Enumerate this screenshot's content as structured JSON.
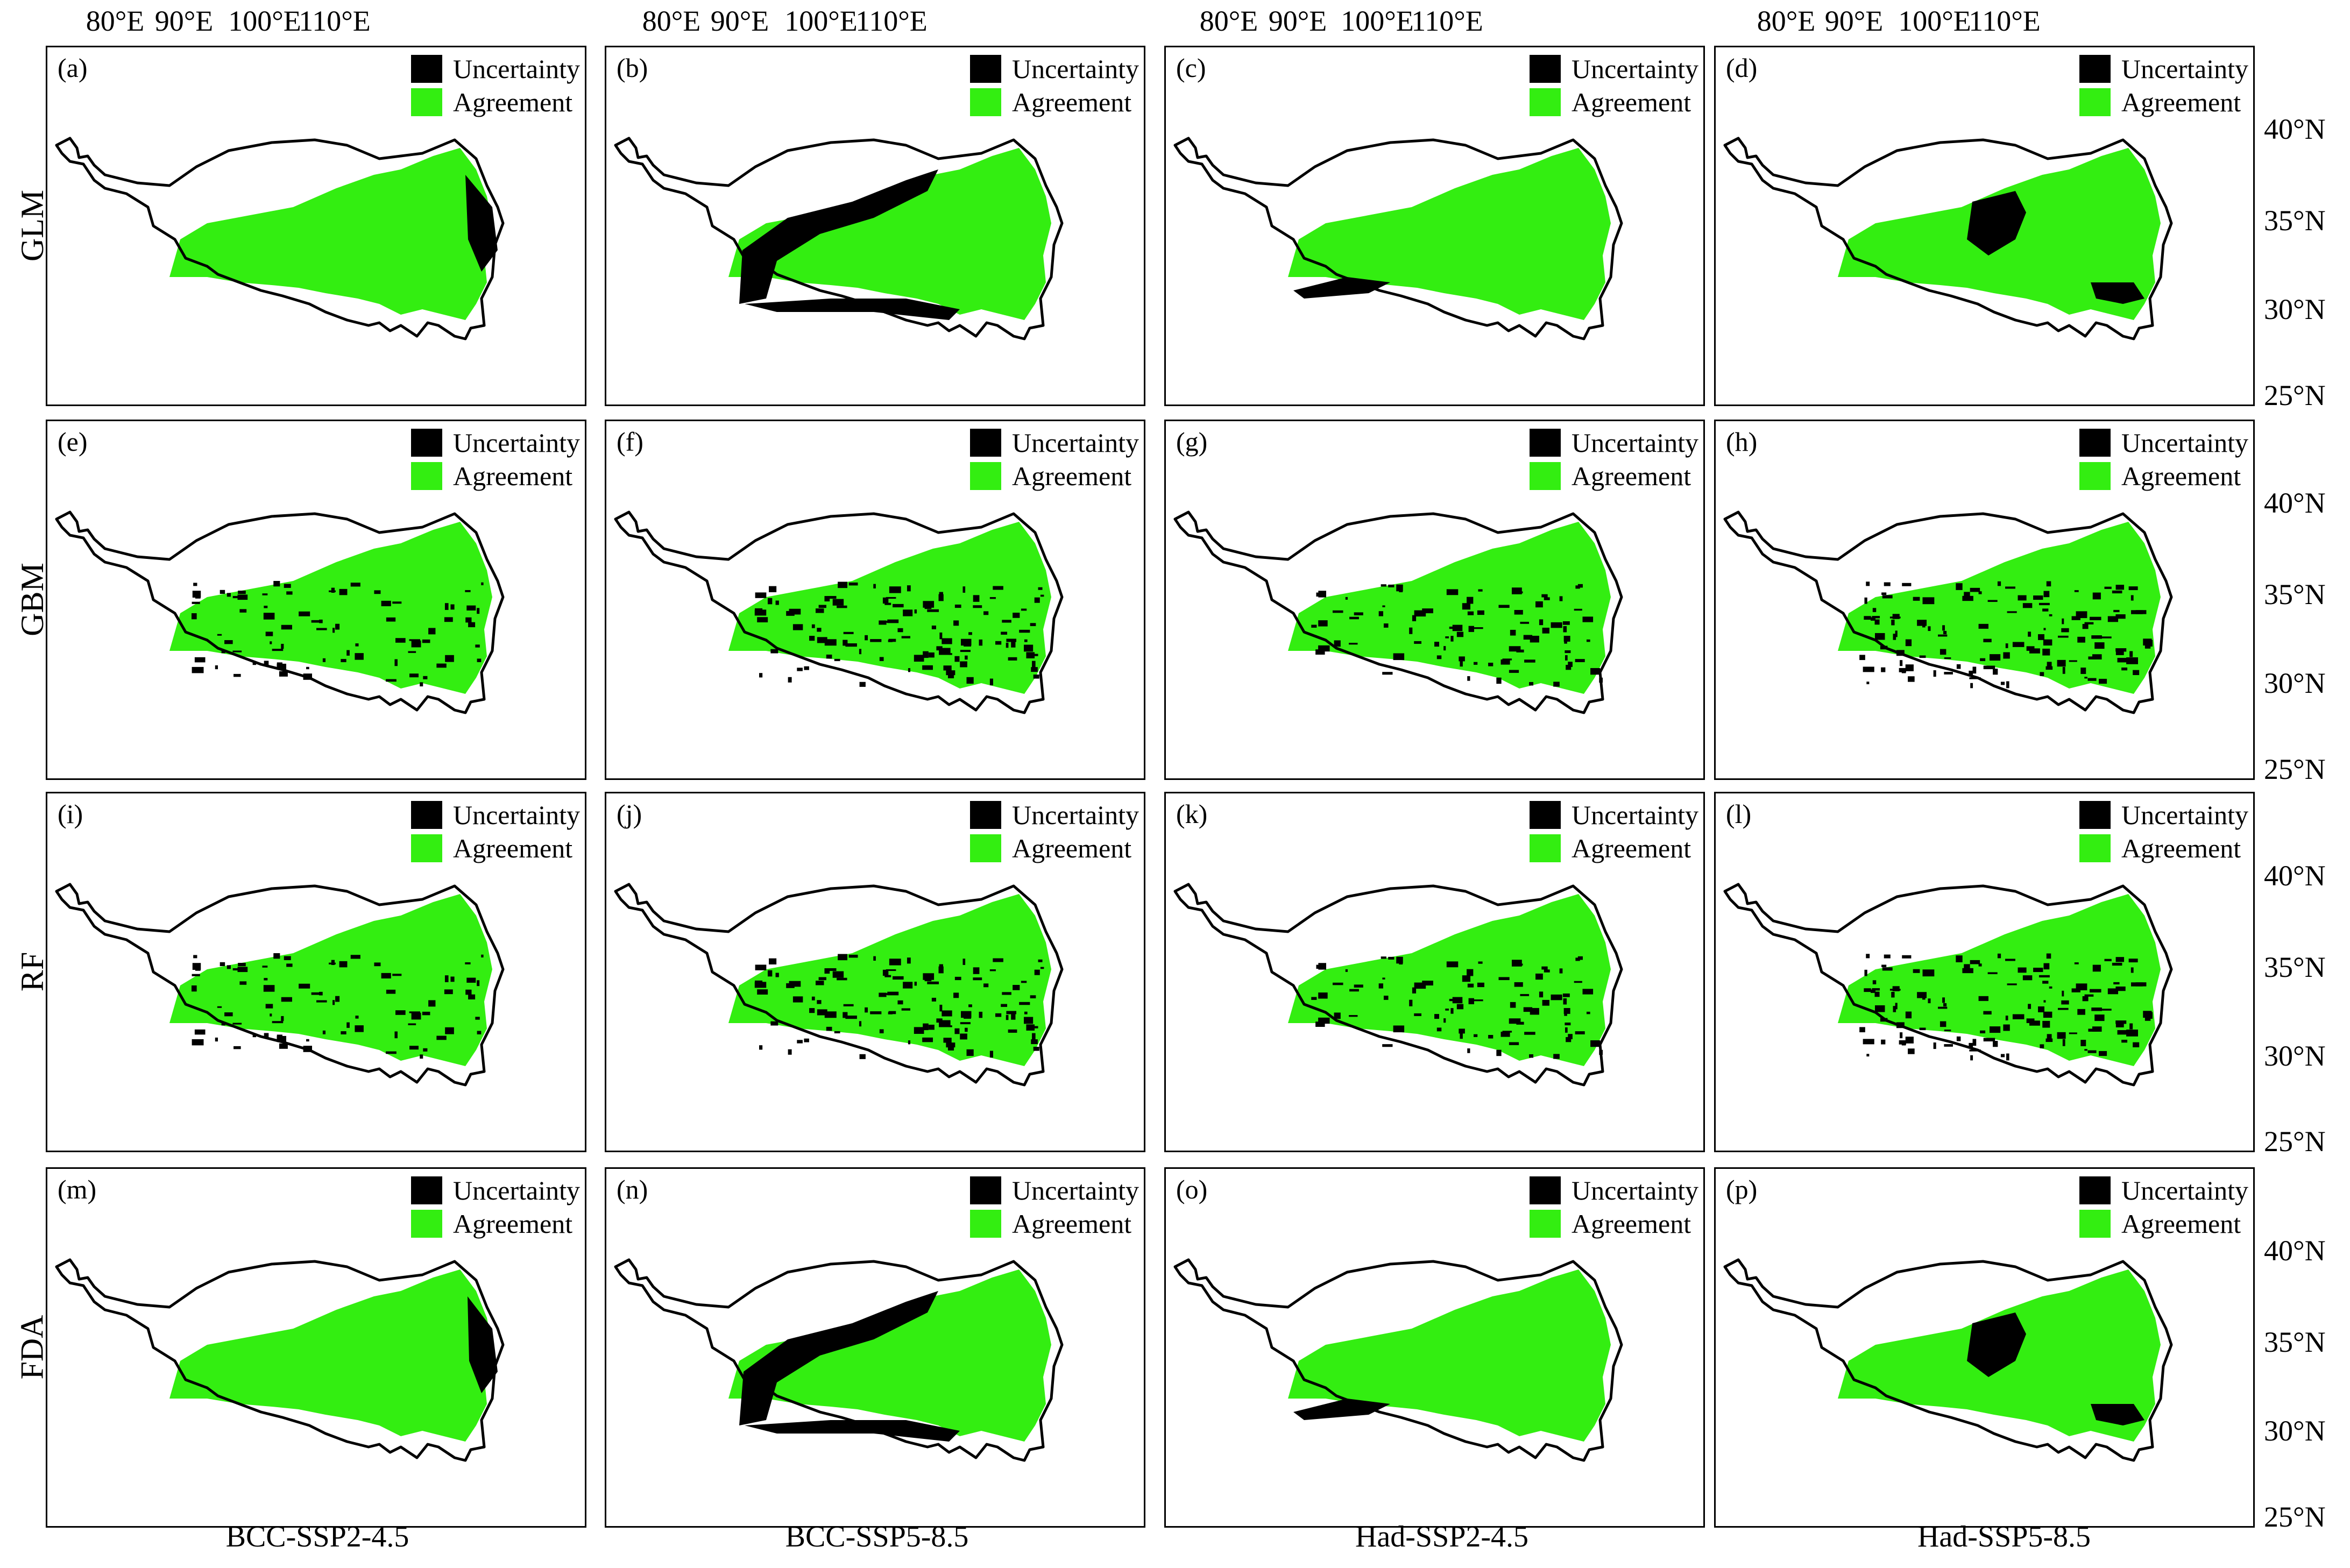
{
  "legend": {
    "uncertainty_label": "Uncertainty",
    "agreement_label": "Agreement",
    "uncertainty_color": "#000000",
    "agreement_color": "#33ee11"
  },
  "boundary_color": "#000000",
  "longitude_ticks": [
    "80°E",
    "90°E",
    "100°E",
    "110°E"
  ],
  "latitude_ticks": [
    "40°N",
    "35°N",
    "30°N",
    "25°N"
  ],
  "rows": [
    {
      "model": "GLM",
      "panels": [
        {
          "label": "(a)",
          "agreement": "center",
          "uncertainty": "east-rim",
          "unc_level": 0.25
        },
        {
          "label": "(b)",
          "agreement": "center",
          "uncertainty": "west-rim",
          "unc_level": 0.7
        },
        {
          "label": "(c)",
          "agreement": "center",
          "uncertainty": "south-edge",
          "unc_level": 0.2
        },
        {
          "label": "(d)",
          "agreement": "center",
          "uncertainty": "west-patch",
          "unc_level": 0.6
        }
      ]
    },
    {
      "model": "GBM",
      "panels": [
        {
          "label": "(e)",
          "agreement": "center",
          "uncertainty": "scattered",
          "unc_level": 0.25
        },
        {
          "label": "(f)",
          "agreement": "center",
          "uncertainty": "scattered",
          "unc_level": 0.45
        },
        {
          "label": "(g)",
          "agreement": "center",
          "uncertainty": "scattered",
          "unc_level": 0.3
        },
        {
          "label": "(h)",
          "agreement": "center",
          "uncertainty": "scattered",
          "unc_level": 0.55
        }
      ]
    },
    {
      "model": "RF",
      "panels": [
        {
          "label": "(i)",
          "agreement": "center",
          "uncertainty": "scattered",
          "unc_level": 0.25
        },
        {
          "label": "(j)",
          "agreement": "center",
          "uncertainty": "scattered",
          "unc_level": 0.45
        },
        {
          "label": "(k)",
          "agreement": "center",
          "uncertainty": "scattered",
          "unc_level": 0.3
        },
        {
          "label": "(l)",
          "agreement": "center",
          "uncertainty": "scattered",
          "unc_level": 0.55
        }
      ]
    },
    {
      "model": "FDA",
      "panels": [
        {
          "label": "(m)",
          "agreement": "center",
          "uncertainty": "east-rim",
          "unc_level": 0.15
        },
        {
          "label": "(n)",
          "agreement": "center",
          "uncertainty": "west-rim",
          "unc_level": 0.6
        },
        {
          "label": "(o)",
          "agreement": "center",
          "uncertainty": "south-edge",
          "unc_level": 0.35
        },
        {
          "label": "(p)",
          "agreement": "center",
          "uncertainty": "west-patch",
          "unc_level": 0.65
        }
      ]
    }
  ],
  "scenarios": [
    "BCC-SSP2-4.5",
    "BCC-SSP5-8.5",
    "Had-SSP2-4.5",
    "Had-SSP5-8.5"
  ]
}
